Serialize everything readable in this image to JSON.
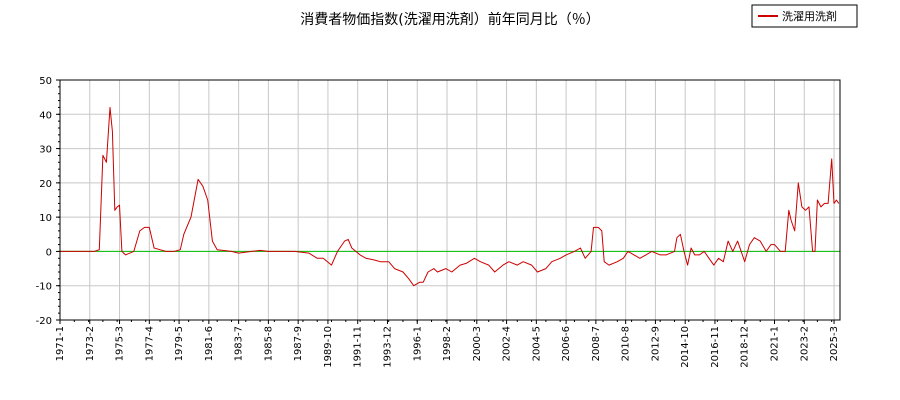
{
  "chart_data": {
    "type": "line",
    "title": "消費者物価指数(洗濯用洗剤）前年同月比（％）",
    "xlabel": "",
    "ylabel": "",
    "ylim": [
      -20,
      50
    ],
    "yticks": [
      -20,
      -10,
      0,
      10,
      20,
      30,
      40,
      50
    ],
    "grid": true,
    "legend_position": "top-right",
    "reference_line": {
      "y": 0,
      "color": "#00c000"
    },
    "x_tick_labels": [
      "1971-1",
      "1973-2",
      "1975-3",
      "1977-4",
      "1979-5",
      "1981-6",
      "1983-7",
      "1985-8",
      "1987-9",
      "1989-10",
      "1991-11",
      "1993-12",
      "1996-1",
      "1998-2",
      "2000-3",
      "2002-4",
      "2004-5",
      "2006-6",
      "2008-7",
      "2010-8",
      "2012-9",
      "2014-10",
      "2016-11",
      "2018-12",
      "2021-1",
      "2023-2",
      "2025-3"
    ],
    "series": [
      {
        "name": "洗濯用洗剤",
        "color": "#cc0000",
        "points": [
          [
            "1971-01",
            0
          ],
          [
            "1972-06",
            0
          ],
          [
            "1973-06",
            0
          ],
          [
            "1973-10",
            0.5
          ],
          [
            "1974-01",
            28
          ],
          [
            "1974-04",
            26
          ],
          [
            "1974-07",
            42
          ],
          [
            "1974-09",
            35
          ],
          [
            "1974-11",
            12
          ],
          [
            "1975-01",
            13
          ],
          [
            "1975-03",
            13.5
          ],
          [
            "1975-05",
            0
          ],
          [
            "1975-08",
            -1
          ],
          [
            "1976-03",
            0
          ],
          [
            "1976-08",
            6
          ],
          [
            "1976-12",
            7
          ],
          [
            "1977-04",
            7
          ],
          [
            "1977-08",
            1
          ],
          [
            "1978-01",
            0.5
          ],
          [
            "1978-06",
            0
          ],
          [
            "1979-01",
            0
          ],
          [
            "1979-06",
            0.5
          ],
          [
            "1979-09",
            5
          ],
          [
            "1980-03",
            10
          ],
          [
            "1980-09",
            21
          ],
          [
            "1981-01",
            19
          ],
          [
            "1981-05",
            15
          ],
          [
            "1981-09",
            3
          ],
          [
            "1982-01",
            0.5
          ],
          [
            "1982-06",
            0.3
          ],
          [
            "1983-01",
            0
          ],
          [
            "1983-07",
            -0.5
          ],
          [
            "1984-06",
            0
          ],
          [
            "1985-01",
            0.3
          ],
          [
            "1985-08",
            0
          ],
          [
            "1986-06",
            0
          ],
          [
            "1987-06",
            0
          ],
          [
            "1988-06",
            -0.5
          ],
          [
            "1989-01",
            -2
          ],
          [
            "1989-06",
            -2
          ],
          [
            "1990-01",
            -4
          ],
          [
            "1990-06",
            0
          ],
          [
            "1990-12",
            3
          ],
          [
            "1991-03",
            3.5
          ],
          [
            "1991-06",
            1
          ],
          [
            "1992-01",
            -1
          ],
          [
            "1992-06",
            -2
          ],
          [
            "1993-01",
            -2.5
          ],
          [
            "1993-06",
            -3
          ],
          [
            "1994-01",
            -3
          ],
          [
            "1994-06",
            -5
          ],
          [
            "1995-01",
            -6
          ],
          [
            "1995-06",
            -8
          ],
          [
            "1995-10",
            -10
          ],
          [
            "1996-03",
            -9
          ],
          [
            "1996-06",
            -9
          ],
          [
            "1996-10",
            -6
          ],
          [
            "1997-03",
            -5
          ],
          [
            "1997-06",
            -6
          ],
          [
            "1998-01",
            -5
          ],
          [
            "1998-06",
            -6
          ],
          [
            "1999-01",
            -4
          ],
          [
            "1999-06",
            -3.5
          ],
          [
            "2000-01",
            -2
          ],
          [
            "2000-06",
            -3
          ],
          [
            "2001-01",
            -4
          ],
          [
            "2001-06",
            -6
          ],
          [
            "2002-01",
            -4
          ],
          [
            "2002-06",
            -3
          ],
          [
            "2003-01",
            -4
          ],
          [
            "2003-06",
            -3
          ],
          [
            "2004-01",
            -4
          ],
          [
            "2004-06",
            -6
          ],
          [
            "2005-01",
            -5
          ],
          [
            "2005-06",
            -3
          ],
          [
            "2006-01",
            -2
          ],
          [
            "2006-06",
            -1
          ],
          [
            "2007-01",
            0
          ],
          [
            "2007-06",
            1
          ],
          [
            "2007-10",
            -2
          ],
          [
            "2008-03",
            0
          ],
          [
            "2008-05",
            7
          ],
          [
            "2008-09",
            7
          ],
          [
            "2008-12",
            6
          ],
          [
            "2009-02",
            -3
          ],
          [
            "2009-06",
            -4
          ],
          [
            "2010-01",
            -3
          ],
          [
            "2010-06",
            -2
          ],
          [
            "2010-10",
            0
          ],
          [
            "2011-03",
            -1
          ],
          [
            "2011-08",
            -2
          ],
          [
            "2012-01",
            -1
          ],
          [
            "2012-06",
            0
          ],
          [
            "2013-01",
            -1
          ],
          [
            "2013-06",
            -1
          ],
          [
            "2014-01",
            0
          ],
          [
            "2014-03",
            4
          ],
          [
            "2014-06",
            5
          ],
          [
            "2014-09",
            0
          ],
          [
            "2014-12",
            -4
          ],
          [
            "2015-03",
            1
          ],
          [
            "2015-06",
            -1
          ],
          [
            "2015-10",
            -1
          ],
          [
            "2016-02",
            0
          ],
          [
            "2016-06",
            -2
          ],
          [
            "2016-10",
            -4
          ],
          [
            "2017-02",
            -2
          ],
          [
            "2017-06",
            -3
          ],
          [
            "2017-10",
            3
          ],
          [
            "2018-02",
            0
          ],
          [
            "2018-06",
            3
          ],
          [
            "2018-12",
            -3
          ],
          [
            "2019-04",
            2
          ],
          [
            "2019-08",
            4
          ],
          [
            "2020-01",
            3
          ],
          [
            "2020-06",
            0
          ],
          [
            "2020-10",
            2
          ],
          [
            "2021-01",
            2
          ],
          [
            "2021-06",
            0
          ],
          [
            "2021-10",
            0
          ],
          [
            "2022-01",
            12
          ],
          [
            "2022-03",
            9
          ],
          [
            "2022-06",
            6
          ],
          [
            "2022-09",
            20
          ],
          [
            "2022-12",
            13
          ],
          [
            "2023-03",
            12
          ],
          [
            "2023-06",
            13
          ],
          [
            "2023-09",
            0
          ],
          [
            "2023-11",
            0
          ],
          [
            "2024-01",
            15
          ],
          [
            "2024-04",
            13
          ],
          [
            "2024-07",
            14
          ],
          [
            "2024-10",
            14
          ],
          [
            "2025-01",
            27
          ],
          [
            "2025-03",
            14
          ],
          [
            "2025-05",
            15
          ],
          [
            "2025-07",
            14
          ]
        ]
      }
    ]
  }
}
